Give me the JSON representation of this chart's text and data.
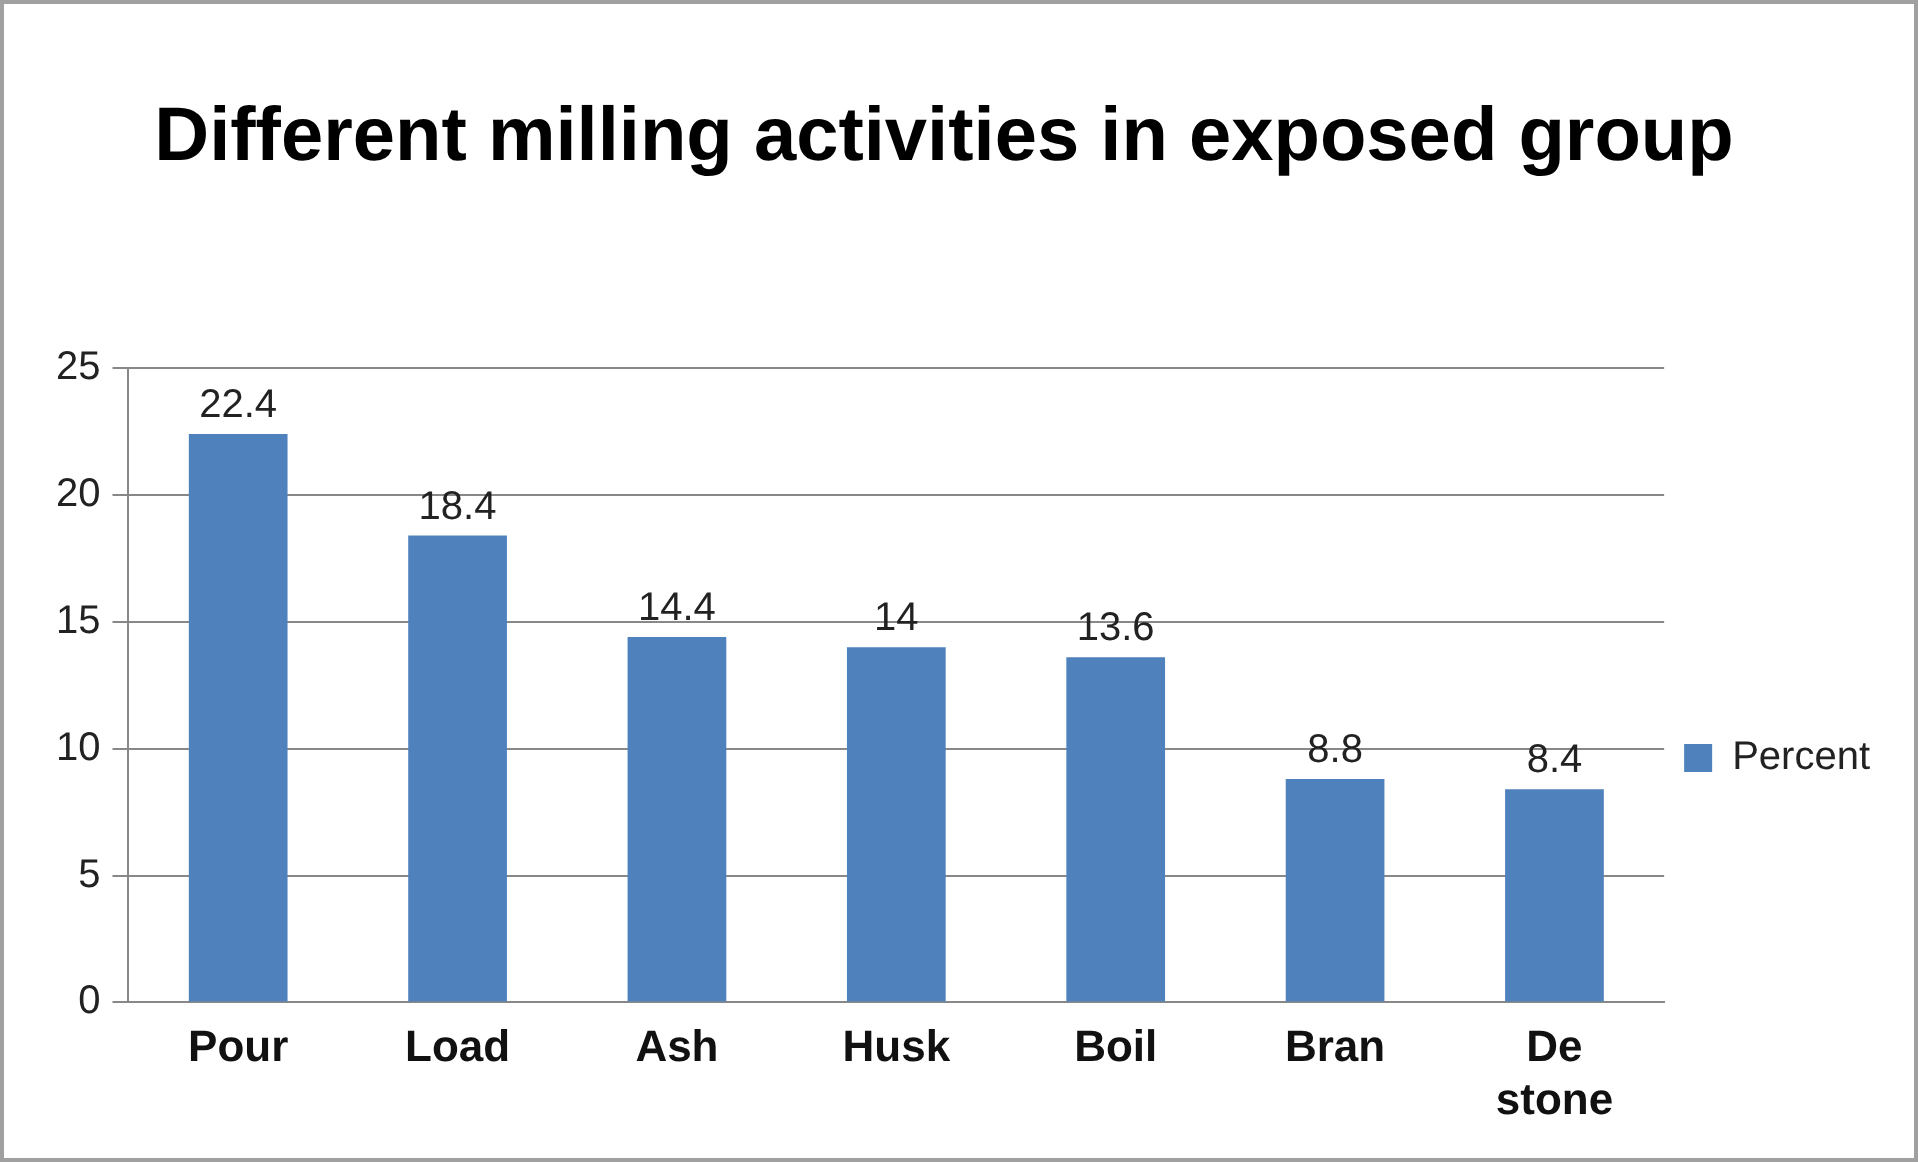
{
  "chart_data": {
    "type": "bar",
    "title": "Different milling activities in exposed group",
    "categories": [
      "Pour",
      "Load",
      "Ash",
      "Husk",
      "Boil",
      "Bran",
      "De stone"
    ],
    "series": [
      {
        "name": "Percent",
        "color": "#4f81bd",
        "values": [
          22.4,
          18.4,
          14.4,
          14,
          13.6,
          8.8,
          8.4
        ]
      }
    ],
    "ylim": [
      0,
      25
    ],
    "yticks": [
      0,
      5,
      10,
      15,
      20,
      25
    ],
    "grid": "y",
    "legend": "right",
    "data_labels": true
  }
}
